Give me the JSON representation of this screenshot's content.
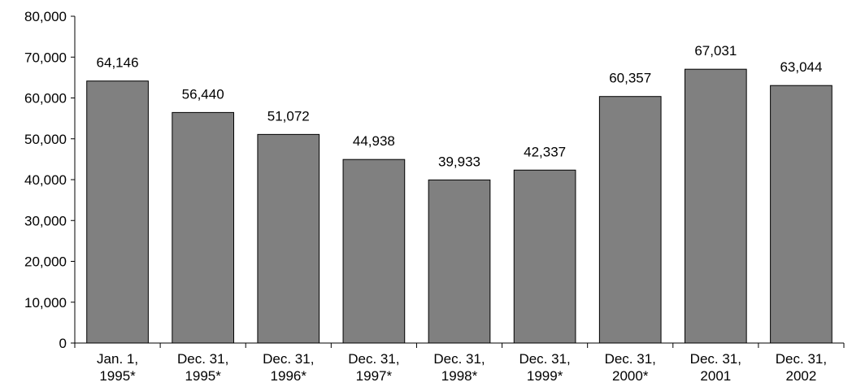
{
  "chart_data": {
    "type": "bar",
    "title": "",
    "xlabel": "",
    "ylabel": "",
    "ylim": [
      0,
      80000
    ],
    "yticks": [
      "0",
      "10,000",
      "20,000",
      "30,000",
      "40,000",
      "50,000",
      "60,000",
      "70,000",
      "80,000"
    ],
    "categories": [
      [
        "Jan. 1,",
        "1995*"
      ],
      [
        "Dec. 31,",
        "1995*"
      ],
      [
        "Dec. 31,",
        "1996*"
      ],
      [
        "Dec. 31,",
        "1997*"
      ],
      [
        "Dec. 31,",
        "1998*"
      ],
      [
        "Dec. 31,",
        "1999*"
      ],
      [
        "Dec. 31,",
        "2000*"
      ],
      [
        "Dec. 31,",
        "2001"
      ],
      [
        "Dec. 31,",
        "2002"
      ]
    ],
    "values": [
      64146,
      56440,
      51072,
      44938,
      39933,
      42337,
      60357,
      67031,
      63044
    ],
    "data_labels": [
      "64,146",
      "56,440",
      "51,072",
      "44,938",
      "39,933",
      "42,337",
      "60,357",
      "67,031",
      "63,044"
    ],
    "bar_color": "#808080",
    "bar_stroke": "#000000",
    "grid": false,
    "legend": "none"
  }
}
